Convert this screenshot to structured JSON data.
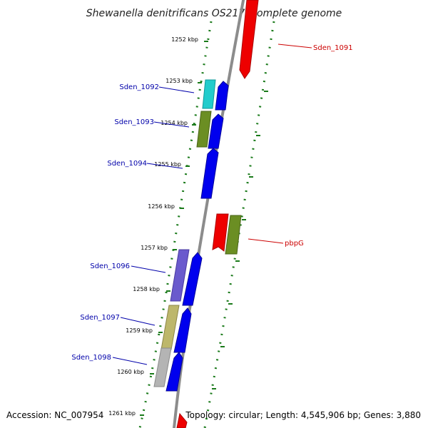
{
  "title": "Shewanella denitrificans OS217, complete genome",
  "footer": {
    "accession": "Accession: NC_007954",
    "summary": "Topology: circular; Length: 4,545,906 bp; Genes: 3,880"
  },
  "colors": {
    "background": "#ffffff",
    "backbone": "#8c8c8c",
    "tick": "#1a7a1a",
    "label_left": "#0000aa",
    "label_right": "#cc0000",
    "gene_forward": "#0000ee",
    "gene_reverse": "#ee0000",
    "cog_cyan": "#22cccc",
    "cog_olive": "#6b8e23",
    "cog_purple": "#6a5acd",
    "cog_khaki": "#bdb76b",
    "cog_gray": "#b4b4b4"
  },
  "ruler": [
    "1252 kbp",
    "1253 kbp",
    "1254 kbp",
    "1255 kbp",
    "1256 kbp",
    "1257 kbp",
    "1258 kbp",
    "1259 kbp",
    "1260 kbp",
    "1261 kbp"
  ],
  "genes_left": [
    {
      "id": "Sden_1092",
      "label": "Sden_1092",
      "strand": "forward",
      "cog_color": "cog_cyan"
    },
    {
      "id": "Sden_1093",
      "label": "Sden_1093",
      "strand": "forward",
      "cog_color": "cog_olive"
    },
    {
      "id": "Sden_1094",
      "label": "Sden_1094",
      "strand": "forward",
      "cog_color": ""
    },
    {
      "id": "Sden_1096",
      "label": "Sden_1096",
      "strand": "forward",
      "cog_color": "cog_purple"
    },
    {
      "id": "Sden_1097",
      "label": "Sden_1097",
      "strand": "forward",
      "cog_color": "cog_khaki"
    },
    {
      "id": "Sden_1098",
      "label": "Sden_1098",
      "strand": "forward",
      "cog_color": "cog_gray"
    }
  ],
  "genes_right": [
    {
      "id": "Sden_1091",
      "label": "Sden_1091",
      "strand": "reverse",
      "cog_color": ""
    },
    {
      "id": "pbpG",
      "label": "pbpG",
      "strand": "reverse",
      "cog_color": "cog_olive"
    }
  ]
}
